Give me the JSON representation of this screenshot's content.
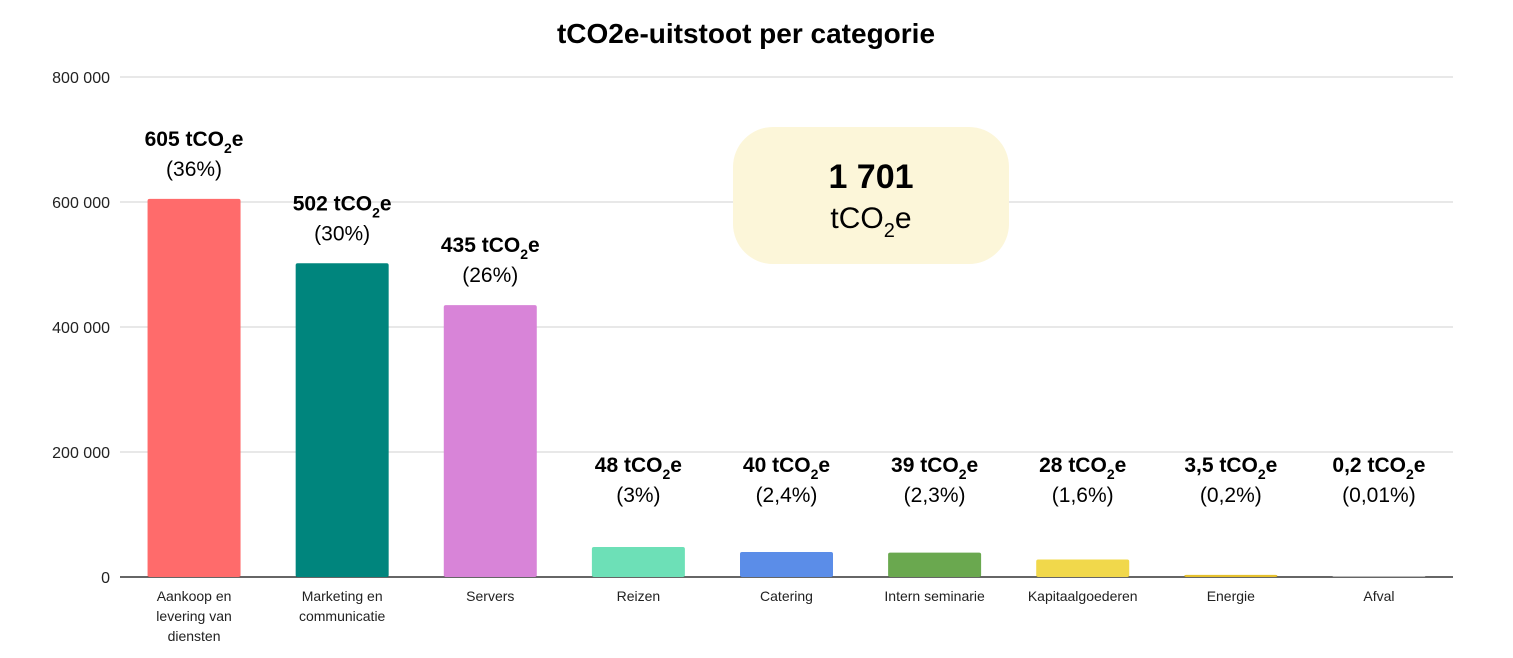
{
  "chart_data": {
    "type": "bar",
    "title": "tCO2e-uitstoot per categorie",
    "xlabel": "",
    "ylabel": "",
    "ylim": [
      0,
      800000
    ],
    "yticks": [
      0,
      200000,
      400000,
      600000,
      800000
    ],
    "ytick_labels": [
      "0",
      "200 000",
      "400 000",
      "600 000",
      "800 000"
    ],
    "grid": true,
    "legend": "none",
    "categories": [
      [
        "Aankoop en",
        "levering van",
        "diensten"
      ],
      [
        "Marketing en",
        "communicatie"
      ],
      [
        "Servers"
      ],
      [
        "Reizen"
      ],
      [
        "Catering"
      ],
      [
        "Intern seminarie"
      ],
      [
        "Kapitaalgoederen"
      ],
      [
        "Energie"
      ],
      [
        "Afval"
      ]
    ],
    "values": [
      605000,
      502000,
      435000,
      48000,
      40000,
      39000,
      28000,
      3500,
      200
    ],
    "colors": [
      "#ff6b6b",
      "#00857d",
      "#d884d8",
      "#6de0b7",
      "#5b8de8",
      "#6aa84f",
      "#f1d84b",
      "#e6c12e",
      "#cccccc"
    ],
    "data_labels": [
      {
        "value": "605 tCO",
        "sub": "2",
        "suffix": "e",
        "pct": "(36%)"
      },
      {
        "value": "502 tCO",
        "sub": "2",
        "suffix": "e",
        "pct": "(30%)"
      },
      {
        "value": "435 tCO",
        "sub": "2",
        "suffix": "e",
        "pct": "(26%)"
      },
      {
        "value": "48 tCO",
        "sub": "2",
        "suffix": "e",
        "pct": "(3%)"
      },
      {
        "value": "40 tCO",
        "sub": "2",
        "suffix": "e",
        "pct": "(2,4%)"
      },
      {
        "value": "39 tCO",
        "sub": "2",
        "suffix": "e",
        "pct": "(2,3%)"
      },
      {
        "value": "28 tCO",
        "sub": "2",
        "suffix": "e",
        "pct": "(1,6%)"
      },
      {
        "value": "3,5 tCO",
        "sub": "2",
        "suffix": "e",
        "pct": "(0,2%)"
      },
      {
        "value": "0,2 tCO",
        "sub": "2",
        "suffix": "e",
        "pct": "(0,01%)"
      }
    ],
    "total": {
      "value": "1 701",
      "unit": "tCO",
      "unit_sub": "2",
      "unit_suffix": "e",
      "background": "#fcf6d9"
    }
  }
}
